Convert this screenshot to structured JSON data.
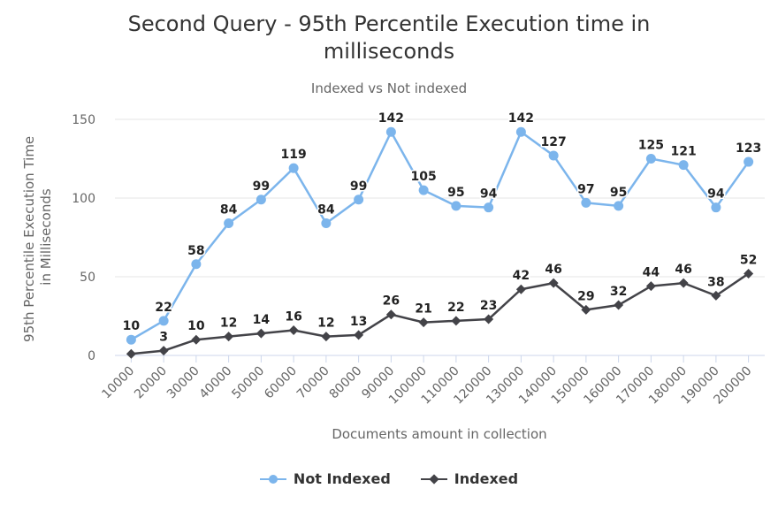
{
  "chart_data": {
    "type": "line",
    "title_lines": [
      "Second Query - 95th Percentile Execution time in",
      "milliseconds"
    ],
    "subtitle": "Indexed vs Not indexed",
    "xlabel": "Documents amount in collection",
    "ylabel_lines": [
      "95th Percentile Execution Time",
      "in Milliseconds"
    ],
    "ylim": [
      0,
      150
    ],
    "yticks": [
      0,
      50,
      100,
      150
    ],
    "grid": true,
    "legend_position": "bottom",
    "categories": [
      "10000",
      "20000",
      "30000",
      "40000",
      "50000",
      "60000",
      "70000",
      "80000",
      "90000",
      "100000",
      "110000",
      "120000",
      "130000",
      "140000",
      "150000",
      "160000",
      "170000",
      "180000",
      "190000",
      "200000"
    ],
    "series": [
      {
        "name": "Not Indexed",
        "color": "#7cb5ec",
        "marker": "circle",
        "values": [
          10,
          22,
          58,
          84,
          99,
          119,
          84,
          99,
          142,
          105,
          95,
          94,
          142,
          127,
          97,
          95,
          125,
          121,
          94,
          123
        ]
      },
      {
        "name": "Indexed",
        "color": "#434348",
        "marker": "diamond",
        "values": [
          1,
          3,
          10,
          12,
          14,
          16,
          12,
          13,
          26,
          21,
          22,
          23,
          42,
          46,
          29,
          32,
          44,
          46,
          38,
          52
        ],
        "labels": [
          "",
          3,
          10,
          12,
          14,
          16,
          12,
          13,
          26,
          21,
          22,
          23,
          42,
          46,
          29,
          32,
          44,
          46,
          38,
          52
        ]
      }
    ]
  }
}
